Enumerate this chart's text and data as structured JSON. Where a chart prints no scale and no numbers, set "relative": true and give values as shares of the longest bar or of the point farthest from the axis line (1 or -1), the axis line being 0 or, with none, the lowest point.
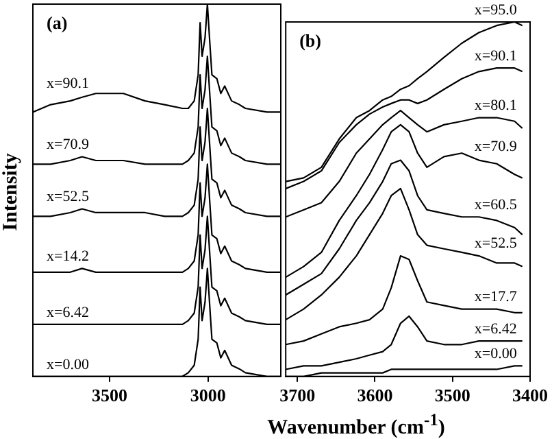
{
  "chart_data": [
    {
      "type": "line",
      "ylabel": "Intensity",
      "annotations": [
        "(a)"
      ],
      "relative": true,
      "legend": false,
      "marker": "none",
      "grid": false,
      "xlim": [
        3890,
        2630
      ],
      "xticks": [
        3500,
        3000
      ],
      "x": [
        3890,
        3800,
        3700,
        3640,
        3570,
        3500,
        3430,
        3320,
        3220,
        3130,
        3100,
        3070,
        3050,
        3040,
        3030,
        3015,
        3003,
        2990,
        2980,
        2955,
        2935,
        2915,
        2880,
        2840,
        2810,
        2700,
        2630
      ],
      "series": [
        {
          "name": "x=90.1",
          "color": "#000000",
          "values": [
            0.71,
            0.73,
            0.74,
            0.75,
            0.76,
            0.76,
            0.76,
            0.74,
            0.73,
            0.72,
            0.72,
            0.74,
            0.81,
            0.95,
            0.86,
            0.91,
            1.0,
            0.89,
            0.81,
            0.8,
            0.76,
            0.78,
            0.74,
            0.73,
            0.72,
            0.71,
            0.71
          ]
        },
        {
          "name": "x=70.9",
          "color": "#000000",
          "values": [
            0.57,
            0.57,
            0.58,
            0.59,
            0.58,
            0.58,
            0.58,
            0.57,
            0.57,
            0.57,
            0.58,
            0.6,
            0.67,
            0.81,
            0.72,
            0.77,
            0.86,
            0.75,
            0.67,
            0.66,
            0.62,
            0.64,
            0.6,
            0.59,
            0.58,
            0.57,
            0.57
          ]
        },
        {
          "name": "x=52.5",
          "color": "#000000",
          "values": [
            0.43,
            0.43,
            0.44,
            0.45,
            0.44,
            0.44,
            0.44,
            0.44,
            0.43,
            0.43,
            0.44,
            0.46,
            0.53,
            0.67,
            0.58,
            0.63,
            0.72,
            0.61,
            0.53,
            0.52,
            0.48,
            0.5,
            0.46,
            0.45,
            0.44,
            0.43,
            0.43
          ]
        },
        {
          "name": "x=14.2",
          "color": "#000000",
          "values": [
            0.28,
            0.28,
            0.28,
            0.29,
            0.28,
            0.28,
            0.28,
            0.28,
            0.28,
            0.28,
            0.29,
            0.31,
            0.38,
            0.52,
            0.43,
            0.48,
            0.57,
            0.46,
            0.38,
            0.37,
            0.33,
            0.35,
            0.31,
            0.3,
            0.29,
            0.28,
            0.28
          ]
        },
        {
          "name": "x=6.42",
          "color": "#000000",
          "values": [
            0.14,
            0.14,
            0.14,
            0.14,
            0.14,
            0.14,
            0.14,
            0.14,
            0.14,
            0.14,
            0.15,
            0.17,
            0.24,
            0.38,
            0.29,
            0.34,
            0.43,
            0.32,
            0.24,
            0.23,
            0.19,
            0.21,
            0.17,
            0.16,
            0.15,
            0.14,
            0.14
          ]
        },
        {
          "name": "x=0.00",
          "color": "#000000",
          "values": [
            0,
            0,
            0,
            0,
            0,
            0,
            0,
            0,
            0,
            0,
            0.01,
            0.03,
            0.1,
            0.24,
            0.15,
            0.2,
            0.29,
            0.18,
            0.1,
            0.09,
            0.05,
            0.07,
            0.03,
            0.02,
            0.01,
            0,
            0
          ]
        }
      ]
    },
    {
      "type": "line",
      "xlabel": "Wavenumber (cm$^{-1}$)",
      "annotations": [
        "(b)"
      ],
      "relative": true,
      "legend": false,
      "marker": "none",
      "grid": false,
      "xlim": [
        3715,
        3400
      ],
      "xticks": [
        3700,
        3600,
        3500,
        3400
      ],
      "x": [
        3715,
        3692,
        3669,
        3646,
        3624,
        3607,
        3590,
        3579,
        3567,
        3556,
        3545,
        3533,
        3511,
        3488,
        3466,
        3443,
        3420,
        3410
      ],
      "series": [
        {
          "name": "x=95.0",
          "color": "#000000",
          "values": [
            0.55,
            0.56,
            0.59,
            0.67,
            0.73,
            0.75,
            0.78,
            0.79,
            0.81,
            0.82,
            0.84,
            0.86,
            0.9,
            0.94,
            0.97,
            0.99,
            1.0,
            0.99
          ]
        },
        {
          "name": "x=90.1",
          "color": "#000000",
          "values": [
            0.53,
            0.55,
            0.58,
            0.66,
            0.71,
            0.74,
            0.76,
            0.77,
            0.78,
            0.78,
            0.77,
            0.78,
            0.81,
            0.84,
            0.86,
            0.87,
            0.87,
            0.86
          ]
        },
        {
          "name": "x=80.1",
          "color": "#000000",
          "values": [
            0.45,
            0.47,
            0.49,
            0.55,
            0.63,
            0.67,
            0.71,
            0.73,
            0.75,
            0.73,
            0.71,
            0.69,
            0.71,
            0.72,
            0.73,
            0.73,
            0.72,
            0.7
          ]
        },
        {
          "name": "x=70.9",
          "color": "#000000",
          "values": [
            0.28,
            0.31,
            0.35,
            0.44,
            0.51,
            0.57,
            0.64,
            0.69,
            0.71,
            0.69,
            0.63,
            0.59,
            0.62,
            0.63,
            0.61,
            0.6,
            0.57,
            0.56
          ]
        },
        {
          "name": "x=60.5",
          "color": "#000000",
          "values": [
            0.23,
            0.26,
            0.29,
            0.36,
            0.44,
            0.49,
            0.55,
            0.6,
            0.61,
            0.58,
            0.51,
            0.47,
            0.46,
            0.45,
            0.45,
            0.44,
            0.42,
            0.4
          ]
        },
        {
          "name": "x=52.5",
          "color": "#000000",
          "values": [
            0.16,
            0.19,
            0.23,
            0.28,
            0.34,
            0.4,
            0.46,
            0.51,
            0.53,
            0.47,
            0.4,
            0.37,
            0.36,
            0.35,
            0.34,
            0.32,
            0.32,
            0.31
          ]
        },
        {
          "name": "x=17.7",
          "color": "#000000",
          "values": [
            0.09,
            0.1,
            0.12,
            0.14,
            0.15,
            0.16,
            0.19,
            0.25,
            0.34,
            0.33,
            0.27,
            0.21,
            0.2,
            0.19,
            0.19,
            0.19,
            0.18,
            0.18
          ]
        },
        {
          "name": "x=6.42",
          "color": "#000000",
          "values": [
            0.02,
            0.03,
            0.03,
            0.04,
            0.05,
            0.06,
            0.07,
            0.09,
            0.15,
            0.17,
            0.14,
            0.1,
            0.09,
            0.09,
            0.1,
            0.1,
            0.1,
            0.1
          ]
        },
        {
          "name": "x=0.00",
          "color": "#000000",
          "values": [
            0,
            0,
            0.01,
            0.01,
            0.01,
            0.01,
            0.01,
            0.02,
            0.02,
            0.02,
            0.02,
            0.02,
            0.02,
            0.02,
            0.02,
            0.02,
            0.03,
            0.03
          ]
        }
      ]
    }
  ]
}
